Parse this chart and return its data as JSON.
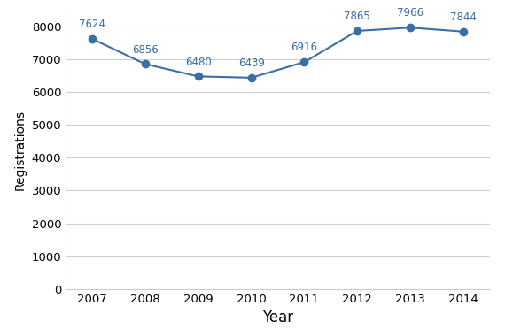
{
  "years": [
    2007,
    2008,
    2009,
    2010,
    2011,
    2012,
    2013,
    2014
  ],
  "values": [
    7624,
    6856,
    6480,
    6439,
    6916,
    7865,
    7966,
    7844
  ],
  "line_color": "#3a6ea5",
  "marker_color": "#3a6ea5",
  "xlabel": "Year",
  "ylabel": "Registrations",
  "ylim": [
    0,
    8500
  ],
  "yticks": [
    0,
    1000,
    2000,
    3000,
    4000,
    5000,
    6000,
    7000,
    8000
  ],
  "background_color": "#ffffff",
  "plot_bg_color": "#ffffff",
  "grid_color": "#d0d0d0",
  "annotation_color": "#3a6ea5",
  "annotation_fontsize": 8.5,
  "xlabel_fontsize": 12,
  "ylabel_fontsize": 10,
  "tick_fontsize": 9.5
}
